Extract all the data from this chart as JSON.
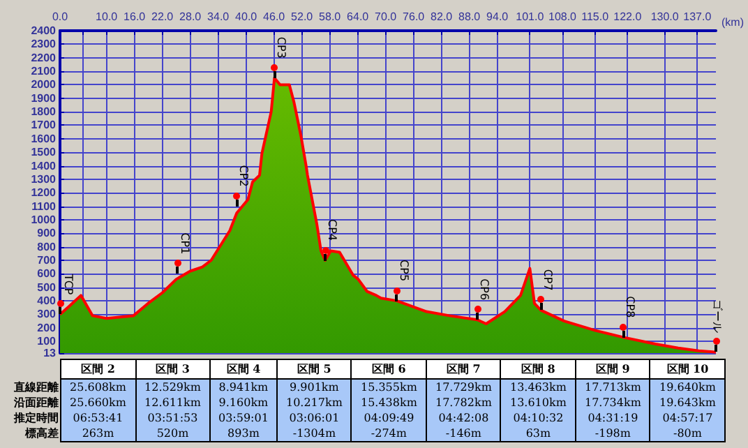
{
  "chart_data": [
    {
      "type": "area",
      "xlabel": "(km)",
      "x": [
        0,
        2,
        4.5,
        7,
        10,
        15.8,
        18.9,
        22,
        25,
        28,
        30.6,
        32.5,
        36.5,
        38,
        40.4,
        41.4,
        42.9,
        43.4,
        45.4,
        46.1,
        47.3,
        49.3,
        50.3,
        51.8,
        52.9,
        53.2,
        55.2,
        56.1,
        57,
        58.2,
        60.1,
        63,
        64.1,
        66,
        68,
        69,
        72.4,
        78.8,
        83.7,
        89.7,
        91.6,
        95.6,
        99,
        101,
        102,
        103.4,
        108.4,
        115.1,
        121.1,
        128,
        132.9,
        137.3,
        141
      ],
      "series": [
        {
          "color": "#339900",
          "values": [
            300,
            360,
            440,
            290,
            270,
            290,
            380,
            460,
            560,
            620,
            650,
            700,
            920,
            1050,
            1150,
            1280,
            1330,
            1490,
            1800,
            2050,
            2000,
            2000,
            1870,
            1620,
            1400,
            1330,
            970,
            770,
            700,
            770,
            760,
            590,
            560,
            470,
            440,
            420,
            400,
            320,
            290,
            260,
            230,
            320,
            440,
            640,
            380,
            330,
            250,
            180,
            130,
            80,
            50,
            30,
            20
          ]
        }
      ],
      "xlim": [
        0,
        141
      ],
      "xticks": [
        {
          "value": 0,
          "label": "0.0"
        },
        {
          "value": 5,
          "label": null
        },
        {
          "value": 10,
          "label": "10.0"
        },
        {
          "value": 16,
          "label": "16.0"
        },
        {
          "value": 22,
          "label": "22.0"
        },
        {
          "value": 28,
          "label": "28.0"
        },
        {
          "value": 34,
          "label": "34.0"
        },
        {
          "value": 40,
          "label": "40.0"
        },
        {
          "value": 46,
          "label": "46.0"
        },
        {
          "value": 52,
          "label": "52.0"
        },
        {
          "value": 58,
          "label": "58.0"
        },
        {
          "value": 64,
          "label": "64.0"
        },
        {
          "value": 70,
          "label": "70.0"
        },
        {
          "value": 76,
          "label": "76.0"
        },
        {
          "value": 82,
          "label": "82.0"
        },
        {
          "value": 88,
          "label": "88.0"
        },
        {
          "value": 94,
          "label": "94.0"
        },
        {
          "value": 101,
          "label": "101.0"
        },
        {
          "value": 108,
          "label": "108.0"
        },
        {
          "value": 115,
          "label": "115.0"
        },
        {
          "value": 122,
          "label": "122.0"
        },
        {
          "value": 130,
          "label": "130.0"
        },
        {
          "value": 137,
          "label": "137.0"
        }
      ],
      "ylim": [
        13,
        2400
      ],
      "yticks": [
        13,
        100,
        200,
        300,
        400,
        500,
        600,
        700,
        800,
        900,
        1000,
        1100,
        1200,
        1300,
        1400,
        1500,
        1600,
        1700,
        1800,
        1900,
        2000,
        2100,
        2200,
        2300,
        2400
      ],
      "grid": true,
      "annotations": [
        {
          "text": "TCP",
          "x": 0,
          "y": 300
        },
        {
          "text": "CP1",
          "x": 25.3,
          "y": 600
        },
        {
          "text": "CP2",
          "x": 38,
          "y": 1100
        },
        {
          "text": "CP3",
          "x": 46.1,
          "y": 2050
        },
        {
          "text": "CP4",
          "x": 57,
          "y": 700
        },
        {
          "text": "CP5",
          "x": 72.4,
          "y": 400
        },
        {
          "text": "CP6",
          "x": 89.7,
          "y": 260
        },
        {
          "text": "CP7",
          "x": 103.4,
          "y": 330
        },
        {
          "text": "CP8",
          "x": 121.1,
          "y": 130
        },
        {
          "text": "ゴール",
          "x": 141,
          "y": 20
        }
      ]
    },
    {
      "type": "other",
      "categories": [
        "区間 2",
        "区間 3",
        "区間 4",
        "区間 5",
        "区間 6",
        "区間 7",
        "区間 8",
        "区間 9",
        "区間 10"
      ],
      "y_categories": [
        "直線距離",
        "沿面距離",
        "推定時間",
        "標高差"
      ],
      "cell_labels": [
        [
          "25.608km",
          "12.529km",
          "8.941km",
          "9.901km",
          "15.355km",
          "17.729km",
          "13.463km",
          "17.713km",
          "19.640km"
        ],
        [
          "25.660km",
          "12.611km",
          "9.160km",
          "10.217km",
          "15.438km",
          "17.782km",
          "13.610km",
          "17.734km",
          "19.643km"
        ],
        [
          "06:53:41",
          "03:51:53",
          "03:59:01",
          "03:06:01",
          "04:09:49",
          "04:42:08",
          "04:10:32",
          "04:31:19",
          "04:57:17"
        ],
        [
          "263m",
          "520m",
          "893m",
          "-1304m",
          "-274m",
          "-146m",
          "63m",
          "-198m",
          "-80m"
        ]
      ]
    }
  ]
}
